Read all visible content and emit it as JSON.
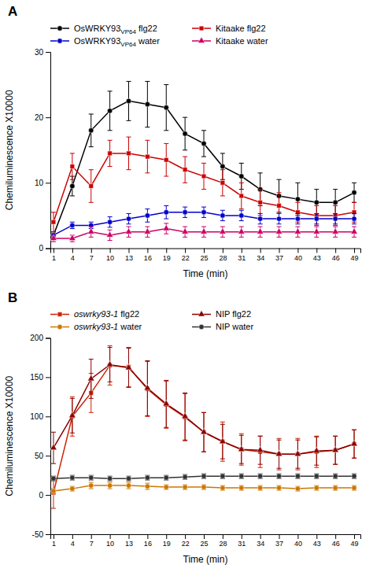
{
  "chart_data": [
    {
      "type": "line",
      "title": "A",
      "xlabel": "Time (min)",
      "ylabel": "Chemiluminescence X10000",
      "x": [
        1,
        4,
        7,
        10,
        13,
        16,
        19,
        22,
        25,
        28,
        31,
        34,
        37,
        40,
        43,
        46,
        49
      ],
      "xlim": [
        0.5,
        50
      ],
      "xticks": [
        1,
        4,
        7,
        10,
        13,
        16,
        19,
        22,
        25,
        28,
        31,
        34,
        37,
        40,
        43,
        46,
        49
      ],
      "ylim": [
        0,
        30
      ],
      "yticks": [
        0,
        10,
        20,
        30
      ],
      "grid": false,
      "legend": "top",
      "series": [
        {
          "name": "OsWRKY93VP64 flg22",
          "color": "#000000",
          "marker": "circle",
          "values": [
            2.0,
            9.5,
            18.0,
            21.0,
            22.5,
            22.0,
            21.5,
            17.5,
            16.0,
            12.5,
            11.0,
            9.0,
            8.0,
            7.5,
            7.0,
            7.0,
            8.5
          ],
          "errors": [
            0.5,
            1.5,
            2.5,
            3.0,
            3.0,
            3.5,
            3.5,
            2.5,
            2.0,
            2.0,
            2.0,
            2.5,
            2.5,
            2.5,
            2.0,
            2.0,
            1.5
          ]
        },
        {
          "name": "Kitaake flg22",
          "color": "#cc0000",
          "marker": "square",
          "values": [
            4.0,
            12.5,
            9.5,
            14.5,
            14.5,
            14.0,
            13.5,
            12.0,
            11.0,
            10.0,
            8.0,
            7.0,
            6.5,
            5.5,
            5.0,
            5.0,
            5.5
          ],
          "errors": [
            1.5,
            2.0,
            2.5,
            2.0,
            2.5,
            2.5,
            2.5,
            2.0,
            2.0,
            2.0,
            2.0,
            2.0,
            2.0,
            1.5,
            1.5,
            1.5,
            1.5
          ]
        },
        {
          "name": "OsWRKY93VP64 water",
          "color": "#0000cc",
          "marker": "circle",
          "values": [
            2.0,
            3.5,
            3.5,
            4.0,
            4.5,
            5.0,
            5.5,
            5.5,
            5.5,
            5.0,
            5.0,
            4.5,
            4.5,
            4.5,
            4.5,
            4.5,
            4.5
          ],
          "errors": [
            0.3,
            0.5,
            0.5,
            0.8,
            0.8,
            1.0,
            1.0,
            0.8,
            0.8,
            0.8,
            0.8,
            0.8,
            0.8,
            0.8,
            0.8,
            0.8,
            0.8
          ]
        },
        {
          "name": "Kitaake water",
          "color": "#cc0066",
          "marker": "triangle",
          "values": [
            1.5,
            1.5,
            2.5,
            2.0,
            2.5,
            2.5,
            3.0,
            2.5,
            2.5,
            2.5,
            2.5,
            2.5,
            2.5,
            2.5,
            2.5,
            2.5,
            2.5
          ],
          "errors": [
            0.5,
            0.5,
            0.8,
            0.8,
            0.8,
            0.8,
            0.8,
            0.8,
            0.8,
            0.8,
            0.8,
            0.8,
            0.8,
            0.8,
            0.8,
            0.8,
            0.8
          ]
        }
      ]
    },
    {
      "type": "line",
      "title": "B",
      "xlabel": "Time (min)",
      "ylabel": "Chemiluminescence X10000",
      "x": [
        1,
        4,
        7,
        10,
        13,
        16,
        19,
        22,
        25,
        28,
        31,
        34,
        37,
        40,
        43,
        46,
        49
      ],
      "xlim": [
        0.5,
        50
      ],
      "xticks": [
        1,
        4,
        7,
        10,
        13,
        16,
        19,
        22,
        25,
        28,
        31,
        34,
        37,
        40,
        43,
        46,
        49
      ],
      "ylim": [
        -50,
        200
      ],
      "yticks": [
        -50,
        0,
        50,
        100,
        150,
        200
      ],
      "grid": false,
      "legend": "top",
      "series": [
        {
          "name": "oswrky93-1 flg22",
          "color": "#cc2200",
          "marker": "square",
          "values": [
            3.0,
            100.0,
            130.0,
            165.0,
            163.0,
            135.0,
            115.0,
            99.0,
            80.0,
            68.0,
            58.0,
            55.0,
            52.0,
            52.0,
            55.0,
            57.0,
            65.0
          ],
          "errors": [
            20.0,
            25.0,
            25.0,
            25.0,
            25.0,
            35.0,
            30.0,
            30.0,
            25.0,
            25.0,
            20.0,
            20.0,
            20.0,
            20.0,
            20.0,
            18.0,
            18.0
          ]
        },
        {
          "name": "NIP flg22",
          "color": "#8b0000",
          "marker": "triangle",
          "values": [
            60.0,
            101.0,
            148.0,
            166.0,
            162.0,
            136.0,
            116.0,
            100.0,
            80.0,
            68.0,
            58.0,
            57.0,
            52.0,
            52.0,
            56.0,
            57.0,
            65.0
          ],
          "errors": [
            20.0,
            22.0,
            25.0,
            22.0,
            25.0,
            35.0,
            30.0,
            30.0,
            25.0,
            22.0,
            18.0,
            18.0,
            18.0,
            18.0,
            18.0,
            18.0,
            18.0
          ]
        },
        {
          "name": "oswrky93-1 water",
          "color": "#cc7700",
          "marker": "circle",
          "values": [
            5.0,
            8.0,
            12.0,
            12.0,
            12.0,
            11.0,
            10.0,
            10.0,
            10.0,
            9.0,
            9.0,
            9.0,
            9.0,
            8.0,
            9.0,
            9.0,
            9.0
          ],
          "errors": [
            3.0,
            3.0,
            4.0,
            4.0,
            4.0,
            4.0,
            3.0,
            3.0,
            3.0,
            3.0,
            3.0,
            3.0,
            3.0,
            3.0,
            3.0,
            3.0,
            3.0
          ]
        },
        {
          "name": "NIP water",
          "color": "#333333",
          "marker": "circle",
          "values": [
            21.0,
            22.0,
            22.0,
            21.0,
            21.0,
            22.0,
            22.0,
            23.0,
            24.0,
            24.0,
            24.0,
            24.0,
            24.0,
            24.0,
            24.0,
            24.0,
            24.0
          ],
          "errors": [
            3.0,
            3.0,
            3.0,
            3.0,
            3.0,
            3.0,
            3.0,
            3.0,
            3.0,
            3.0,
            3.0,
            3.0,
            3.0,
            3.0,
            3.0,
            3.0,
            3.0
          ]
        }
      ]
    }
  ]
}
